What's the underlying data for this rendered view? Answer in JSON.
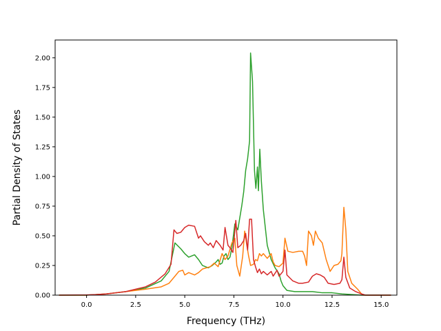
{
  "chart_data": {
    "type": "line",
    "title": "",
    "xlabel": "Frequency (THz)",
    "ylabel": "Partial Density of States",
    "xlim": [
      -1.6,
      15.8
    ],
    "ylim": [
      0.0,
      2.15
    ],
    "x_ticks": [
      0.0,
      2.5,
      5.0,
      7.5,
      10.0,
      12.5,
      15.0
    ],
    "x_tick_labels": [
      "0.0",
      "2.5",
      "5.0",
      "7.5",
      "10.0",
      "12.5",
      "15.0"
    ],
    "y_ticks": [
      0.0,
      0.25,
      0.5,
      0.75,
      1.0,
      1.25,
      1.5,
      1.75,
      2.0
    ],
    "y_tick_labels": [
      "0.00",
      "0.25",
      "0.50",
      "0.75",
      "1.00",
      "1.25",
      "1.50",
      "1.75",
      "2.00"
    ],
    "grid": false,
    "legend": "none",
    "series": [
      {
        "color": "#2ca02c",
        "points": [
          [
            -1.4,
            0
          ],
          [
            0,
            0
          ],
          [
            1,
            0.01
          ],
          [
            2,
            0.03
          ],
          [
            3,
            0.06
          ],
          [
            3.8,
            0.12
          ],
          [
            4.2,
            0.2
          ],
          [
            4.5,
            0.44
          ],
          [
            4.8,
            0.39
          ],
          [
            5.0,
            0.35
          ],
          [
            5.2,
            0.32
          ],
          [
            5.5,
            0.34
          ],
          [
            5.7,
            0.3
          ],
          [
            5.9,
            0.25
          ],
          [
            6.2,
            0.23
          ],
          [
            6.4,
            0.25
          ],
          [
            6.6,
            0.28
          ],
          [
            6.7,
            0.3
          ],
          [
            6.8,
            0.26
          ],
          [
            6.9,
            0.27
          ],
          [
            7.0,
            0.33
          ],
          [
            7.1,
            0.35
          ],
          [
            7.2,
            0.3
          ],
          [
            7.3,
            0.32
          ],
          [
            7.4,
            0.4
          ],
          [
            7.55,
            0.6
          ],
          [
            7.7,
            0.55
          ],
          [
            7.9,
            0.75
          ],
          [
            8.0,
            0.87
          ],
          [
            8.1,
            1.05
          ],
          [
            8.2,
            1.15
          ],
          [
            8.3,
            1.3
          ],
          [
            8.35,
            2.04
          ],
          [
            8.45,
            1.8
          ],
          [
            8.55,
            1.05
          ],
          [
            8.62,
            0.9
          ],
          [
            8.7,
            1.08
          ],
          [
            8.75,
            0.88
          ],
          [
            8.82,
            1.23
          ],
          [
            8.9,
            0.96
          ],
          [
            9.0,
            0.72
          ],
          [
            9.2,
            0.42
          ],
          [
            9.4,
            0.3
          ],
          [
            9.6,
            0.23
          ],
          [
            9.8,
            0.18
          ],
          [
            9.9,
            0.12
          ],
          [
            10.0,
            0.08
          ],
          [
            10.2,
            0.04
          ],
          [
            10.6,
            0.03
          ],
          [
            11.0,
            0.03
          ],
          [
            11.5,
            0.03
          ],
          [
            12.0,
            0.02
          ],
          [
            12.5,
            0.02
          ],
          [
            13.0,
            0.01
          ],
          [
            13.5,
            0.005
          ],
          [
            14.0,
            0
          ],
          [
            15.5,
            0
          ]
        ]
      },
      {
        "color": "#ff7f0e",
        "points": [
          [
            -1.4,
            0
          ],
          [
            0,
            0
          ],
          [
            1,
            0.01
          ],
          [
            2,
            0.03
          ],
          [
            3,
            0.05
          ],
          [
            3.8,
            0.07
          ],
          [
            4.2,
            0.1
          ],
          [
            4.5,
            0.16
          ],
          [
            4.7,
            0.2
          ],
          [
            4.9,
            0.21
          ],
          [
            5.0,
            0.17
          ],
          [
            5.2,
            0.19
          ],
          [
            5.5,
            0.17
          ],
          [
            5.7,
            0.19
          ],
          [
            5.9,
            0.22
          ],
          [
            6.1,
            0.23
          ],
          [
            6.3,
            0.24
          ],
          [
            6.5,
            0.27
          ],
          [
            6.7,
            0.24
          ],
          [
            6.9,
            0.35
          ],
          [
            7.05,
            0.3
          ],
          [
            7.2,
            0.33
          ],
          [
            7.4,
            0.44
          ],
          [
            7.55,
            0.48
          ],
          [
            7.65,
            0.25
          ],
          [
            7.8,
            0.16
          ],
          [
            7.95,
            0.33
          ],
          [
            8.05,
            0.54
          ],
          [
            8.15,
            0.43
          ],
          [
            8.25,
            0.33
          ],
          [
            8.35,
            0.25
          ],
          [
            8.5,
            0.26
          ],
          [
            8.6,
            0.3
          ],
          [
            8.7,
            0.29
          ],
          [
            8.8,
            0.35
          ],
          [
            8.9,
            0.33
          ],
          [
            9.0,
            0.35
          ],
          [
            9.2,
            0.31
          ],
          [
            9.4,
            0.35
          ],
          [
            9.5,
            0.28
          ],
          [
            9.6,
            0.25
          ],
          [
            9.8,
            0.24
          ],
          [
            10.0,
            0.27
          ],
          [
            10.1,
            0.48
          ],
          [
            10.25,
            0.37
          ],
          [
            10.5,
            0.36
          ],
          [
            10.8,
            0.37
          ],
          [
            11.0,
            0.37
          ],
          [
            11.1,
            0.33
          ],
          [
            11.2,
            0.25
          ],
          [
            11.3,
            0.54
          ],
          [
            11.45,
            0.5
          ],
          [
            11.55,
            0.42
          ],
          [
            11.65,
            0.54
          ],
          [
            11.8,
            0.48
          ],
          [
            12.0,
            0.44
          ],
          [
            12.2,
            0.3
          ],
          [
            12.4,
            0.2
          ],
          [
            12.6,
            0.25
          ],
          [
            12.8,
            0.26
          ],
          [
            12.95,
            0.29
          ],
          [
            13.0,
            0.35
          ],
          [
            13.1,
            0.74
          ],
          [
            13.2,
            0.55
          ],
          [
            13.3,
            0.2
          ],
          [
            13.5,
            0.1
          ],
          [
            13.8,
            0.05
          ],
          [
            14.0,
            0.01
          ],
          [
            14.1,
            0
          ],
          [
            15.5,
            0
          ]
        ]
      },
      {
        "color": "#d62728",
        "points": [
          [
            -1.4,
            0
          ],
          [
            0,
            0.002
          ],
          [
            0.5,
            0.005
          ],
          [
            1,
            0.01
          ],
          [
            1.5,
            0.02
          ],
          [
            2,
            0.03
          ],
          [
            2.5,
            0.05
          ],
          [
            3,
            0.07
          ],
          [
            3.5,
            0.11
          ],
          [
            4.0,
            0.18
          ],
          [
            4.3,
            0.26
          ],
          [
            4.45,
            0.55
          ],
          [
            4.6,
            0.52
          ],
          [
            4.8,
            0.53
          ],
          [
            5.0,
            0.57
          ],
          [
            5.2,
            0.59
          ],
          [
            5.5,
            0.58
          ],
          [
            5.7,
            0.48
          ],
          [
            5.8,
            0.5
          ],
          [
            6.0,
            0.45
          ],
          [
            6.2,
            0.42
          ],
          [
            6.3,
            0.44
          ],
          [
            6.45,
            0.4
          ],
          [
            6.6,
            0.46
          ],
          [
            6.8,
            0.42
          ],
          [
            6.95,
            0.38
          ],
          [
            7.05,
            0.57
          ],
          [
            7.2,
            0.42
          ],
          [
            7.3,
            0.4
          ],
          [
            7.45,
            0.36
          ],
          [
            7.6,
            0.63
          ],
          [
            7.7,
            0.4
          ],
          [
            7.85,
            0.42
          ],
          [
            8.0,
            0.46
          ],
          [
            8.1,
            0.52
          ],
          [
            8.2,
            0.38
          ],
          [
            8.3,
            0.64
          ],
          [
            8.4,
            0.64
          ],
          [
            8.5,
            0.3
          ],
          [
            8.6,
            0.24
          ],
          [
            8.7,
            0.19
          ],
          [
            8.8,
            0.22
          ],
          [
            8.9,
            0.18
          ],
          [
            9.0,
            0.2
          ],
          [
            9.2,
            0.17
          ],
          [
            9.4,
            0.2
          ],
          [
            9.5,
            0.16
          ],
          [
            9.7,
            0.21
          ],
          [
            9.8,
            0.16
          ],
          [
            10.0,
            0.2
          ],
          [
            10.1,
            0.38
          ],
          [
            10.2,
            0.17
          ],
          [
            10.5,
            0.12
          ],
          [
            10.8,
            0.1
          ],
          [
            11.0,
            0.1
          ],
          [
            11.3,
            0.11
          ],
          [
            11.5,
            0.16
          ],
          [
            11.7,
            0.18
          ],
          [
            11.9,
            0.17
          ],
          [
            12.1,
            0.15
          ],
          [
            12.3,
            0.1
          ],
          [
            12.6,
            0.09
          ],
          [
            12.9,
            0.1
          ],
          [
            13.0,
            0.13
          ],
          [
            13.1,
            0.32
          ],
          [
            13.2,
            0.15
          ],
          [
            13.4,
            0.06
          ],
          [
            13.7,
            0.03
          ],
          [
            14.0,
            0.01
          ],
          [
            14.2,
            0
          ],
          [
            15.5,
            0
          ]
        ]
      }
    ]
  }
}
